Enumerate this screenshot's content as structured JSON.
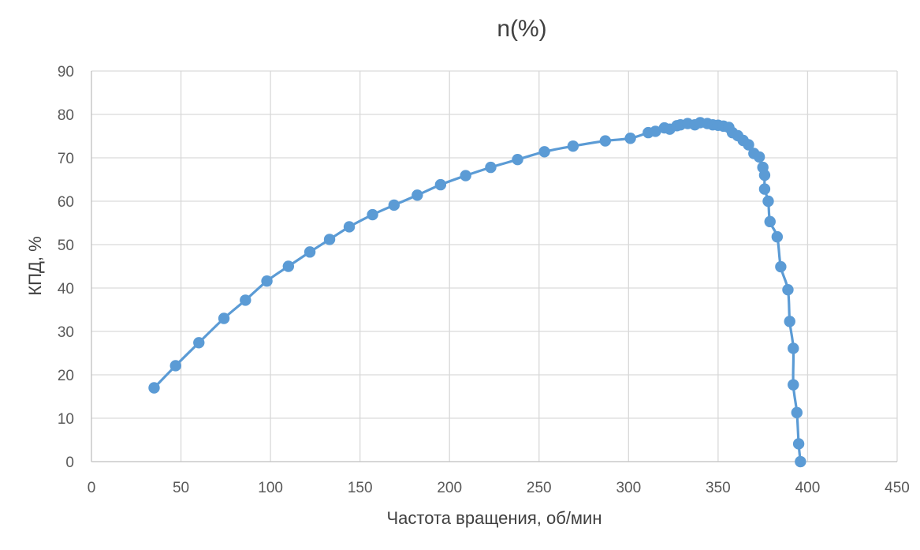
{
  "chart_data": {
    "type": "scatter",
    "title": "n(%)",
    "xlabel": "Частота вращения, об/мин",
    "ylabel": "КПД, %",
    "xlim": [
      0,
      450
    ],
    "ylim": [
      0,
      90
    ],
    "xticks": [
      "0",
      "50",
      "100",
      "150",
      "200",
      "250",
      "300",
      "350",
      "400",
      "450"
    ],
    "yticks": [
      "0",
      "10",
      "20",
      "30",
      "40",
      "50",
      "60",
      "70",
      "80",
      "90"
    ],
    "grid": true,
    "legend": "none",
    "markers": true,
    "line": "smooth",
    "series": [
      {
        "color": "#5B9BD5",
        "points": [
          [
            35,
            17.0
          ],
          [
            47,
            22.1
          ],
          [
            60,
            27.4
          ],
          [
            74,
            33.0
          ],
          [
            86,
            37.2
          ],
          [
            98,
            41.6
          ],
          [
            110,
            45.0
          ],
          [
            122,
            48.3
          ],
          [
            133,
            51.2
          ],
          [
            144,
            54.1
          ],
          [
            157,
            56.9
          ],
          [
            169,
            59.1
          ],
          [
            182,
            61.4
          ],
          [
            195,
            63.8
          ],
          [
            209,
            65.9
          ],
          [
            223,
            67.8
          ],
          [
            238,
            69.6
          ],
          [
            253,
            71.4
          ],
          [
            269,
            72.7
          ],
          [
            287,
            73.9
          ],
          [
            301,
            74.5
          ],
          [
            311,
            75.8
          ],
          [
            315,
            76.1
          ],
          [
            320,
            76.9
          ],
          [
            323,
            76.6
          ],
          [
            327,
            77.4
          ],
          [
            329,
            77.6
          ],
          [
            333,
            77.9
          ],
          [
            337,
            77.6
          ],
          [
            340,
            78.1
          ],
          [
            344,
            77.9
          ],
          [
            347,
            77.6
          ],
          [
            350,
            77.5
          ],
          [
            353,
            77.3
          ],
          [
            356,
            77.0
          ],
          [
            358,
            75.8
          ],
          [
            361,
            75.1
          ],
          [
            364,
            74.0
          ],
          [
            367,
            73.0
          ],
          [
            370,
            71.0
          ],
          [
            373,
            70.2
          ],
          [
            375,
            67.8
          ],
          [
            376,
            66.0
          ],
          [
            376,
            62.8
          ],
          [
            378,
            60.0
          ],
          [
            379,
            55.3
          ],
          [
            383,
            51.8
          ],
          [
            385,
            44.9
          ],
          [
            389,
            39.6
          ],
          [
            390,
            32.3
          ],
          [
            392,
            26.1
          ],
          [
            392,
            17.7
          ],
          [
            394,
            11.3
          ],
          [
            395,
            4.1
          ],
          [
            396,
            0.0
          ]
        ]
      }
    ]
  }
}
